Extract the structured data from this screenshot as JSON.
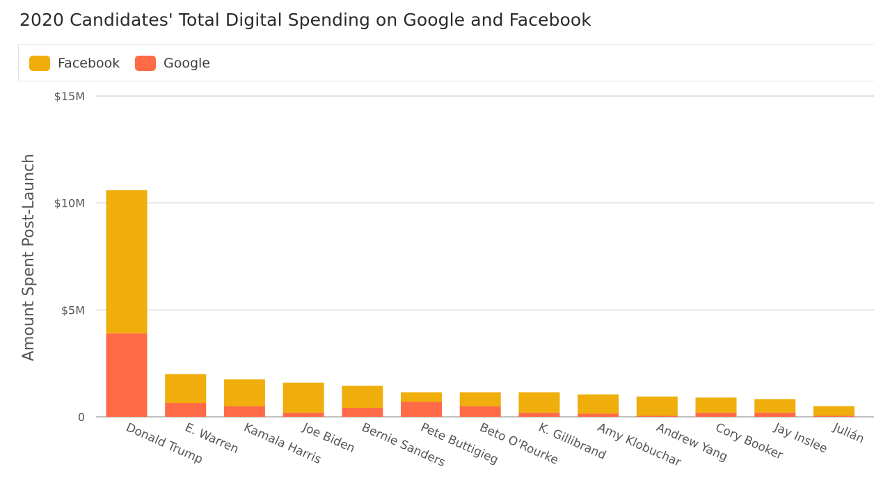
{
  "title": "2020 Candidates' Total Digital Spending on Google and Facebook",
  "legend": [
    {
      "label": "Facebook",
      "color": "#EFAE0B"
    },
    {
      "label": "Google",
      "color": "#FF6A47"
    }
  ],
  "chart_data": {
    "type": "bar",
    "stacked": true,
    "title": "2020 Candidates' Total Digital Spending on Google and Facebook",
    "xlabel": "",
    "ylabel": "Amount Spent Post-Launch",
    "ylim": [
      0,
      15
    ],
    "yticks": [
      0,
      5,
      10,
      15
    ],
    "ytick_labels": [
      "0",
      "$5M",
      "$10M",
      "$15M"
    ],
    "grid": true,
    "legend_position": "top",
    "categories": [
      "Donald Trump",
      "E. Warren",
      "Kamala Harris",
      "Joe Biden",
      "Bernie Sanders",
      "Pete Buttigieg",
      "Beto O'Rourke",
      "K. Gillibrand",
      "Amy Klobuchar",
      "Andrew Yang",
      "Cory Booker",
      "Jay Inslee",
      "Julián"
    ],
    "series": [
      {
        "name": "Google",
        "color": "#FF6A47",
        "values": [
          3.9,
          0.65,
          0.5,
          0.2,
          0.42,
          0.7,
          0.5,
          0.2,
          0.15,
          0.05,
          0.2,
          0.2,
          0.05
        ]
      },
      {
        "name": "Facebook",
        "color": "#EFAE0B",
        "values": [
          6.7,
          1.35,
          1.25,
          1.4,
          1.03,
          0.45,
          0.65,
          0.95,
          0.9,
          0.9,
          0.7,
          0.63,
          0.45
        ]
      }
    ]
  }
}
